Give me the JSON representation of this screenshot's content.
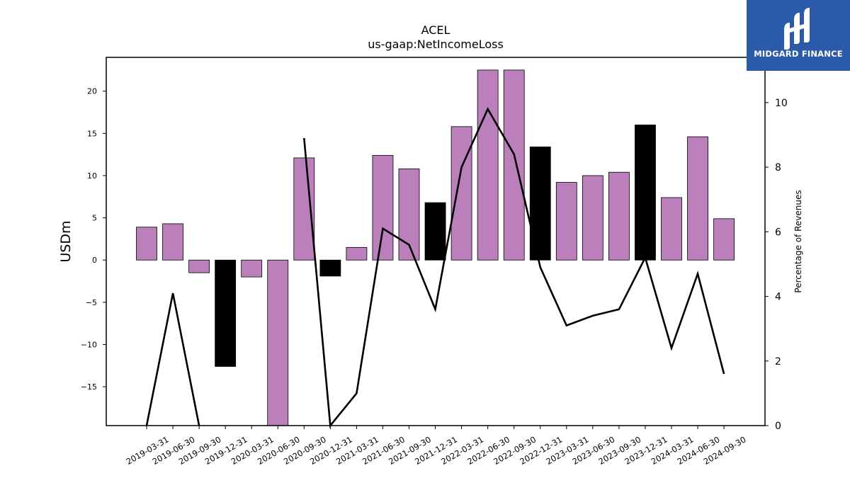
{
  "chart_data": {
    "type": "bar",
    "title": "ACEL",
    "subtitle": "us-gaap:NetIncomeLoss",
    "ylabel": "USDm",
    "y2label": "Percentage of Revenues",
    "categories": [
      "2019-03-31",
      "2019-06-30",
      "2019-09-30",
      "2019-12-31",
      "2020-03-31",
      "2020-06-30",
      "2020-09-30",
      "2020-12-31",
      "2021-03-31",
      "2021-06-30",
      "2021-09-30",
      "2021-12-31",
      "2022-03-31",
      "2022-06-30",
      "2022-09-30",
      "2022-12-31",
      "2023-03-31",
      "2023-06-30",
      "2023-09-30",
      "2023-12-31",
      "2024-03-31",
      "2024-06-30",
      "2024-09-30"
    ],
    "series": [
      {
        "values": [
          3.9,
          4.3,
          -1.5,
          -12.6,
          -2.0,
          -19.6,
          12.1,
          -1.9,
          1.5,
          12.4,
          10.8,
          6.8,
          15.8,
          22.5,
          22.5,
          13.4,
          9.2,
          10.0,
          10.4,
          16.0,
          7.4,
          14.6,
          4.9
        ],
        "colors": [
          "#bb7fbc",
          "#bb7fbc",
          "#bb7fbc",
          "#000000",
          "#bb7fbc",
          "#bb7fbc",
          "#bb7fbc",
          "#000000",
          "#bb7fbc",
          "#bb7fbc",
          "#bb7fbc",
          "#000000",
          "#bb7fbc",
          "#bb7fbc",
          "#bb7fbc",
          "#000000",
          "#bb7fbc",
          "#bb7fbc",
          "#bb7fbc",
          "#000000",
          "#bb7fbc",
          "#bb7fbc",
          "#bb7fbc"
        ]
      },
      {
        "type": "line",
        "axis": "right",
        "values": [
          0.0,
          4.1,
          0.0,
          null,
          null,
          null,
          8.9,
          0.0,
          1.0,
          6.1,
          5.6,
          3.6,
          8.0,
          9.8,
          8.4,
          4.9,
          3.1,
          3.4,
          3.6,
          5.2,
          2.4,
          4.7,
          1.6
        ]
      }
    ],
    "ylim": [
      -19.6,
      24.0
    ],
    "yticks": [
      "−15",
      "−10",
      "−5",
      "0",
      "5",
      "10",
      "15",
      "20"
    ],
    "yticks_values": [
      -15,
      -10,
      -5,
      0,
      5,
      10,
      15,
      20
    ],
    "y2lim": [
      0,
      11.4
    ],
    "y2ticks": [
      "0",
      "2",
      "4",
      "6",
      "8",
      "10"
    ],
    "y2ticks_values": [
      0,
      2,
      4,
      6,
      8,
      10
    ],
    "grid": false,
    "legend": "none",
    "colors": {
      "profit": "#bb7fbc",
      "q4": "#000000",
      "line": "#000000"
    }
  },
  "logo": {
    "text": "MIDGARD FINANCE",
    "background": "#2b5aa8"
  }
}
